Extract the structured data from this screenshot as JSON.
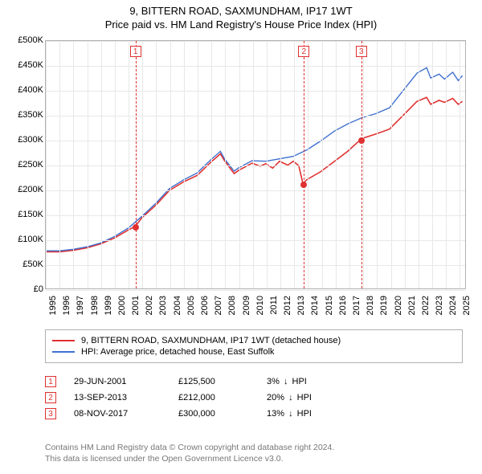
{
  "title_line1": "9, BITTERN ROAD, SAXMUNDHAM, IP17 1WT",
  "title_line2": "Price paid vs. HM Land Registry's House Price Index (HPI)",
  "chart": {
    "type": "line",
    "background_color": "#ffffff",
    "grid_color": "#e8e8e8",
    "border_color": "#b0b0b0",
    "x": {
      "min": 1995,
      "max": 2025.5,
      "ticks": [
        1995,
        1996,
        1997,
        1998,
        1999,
        2000,
        2001,
        2002,
        2003,
        2004,
        2005,
        2006,
        2007,
        2008,
        2009,
        2010,
        2011,
        2012,
        2013,
        2014,
        2015,
        2016,
        2017,
        2018,
        2019,
        2020,
        2021,
        2022,
        2023,
        2024,
        2025
      ]
    },
    "y": {
      "min": 0,
      "max": 500000,
      "step": 50000,
      "labels": [
        "£0",
        "£50K",
        "£100K",
        "£150K",
        "£200K",
        "£250K",
        "£300K",
        "£350K",
        "£400K",
        "£450K",
        "£500K"
      ]
    },
    "series": [
      {
        "name": "9, BITTERN ROAD, SAXMUNDHAM, IP17 1WT (detached house)",
        "color": "#e03030",
        "width": 1.6,
        "points": [
          [
            1995,
            74000
          ],
          [
            1996,
            74000
          ],
          [
            1997,
            77000
          ],
          [
            1998,
            82000
          ],
          [
            1999,
            90000
          ],
          [
            2000,
            102000
          ],
          [
            2001,
            118000
          ],
          [
            2001.5,
            125500
          ],
          [
            2002,
            143000
          ],
          [
            2003,
            168000
          ],
          [
            2004,
            198000
          ],
          [
            2005,
            215000
          ],
          [
            2006,
            228000
          ],
          [
            2007,
            255000
          ],
          [
            2007.7,
            272000
          ],
          [
            2008,
            258000
          ],
          [
            2008.7,
            232000
          ],
          [
            2009,
            238000
          ],
          [
            2010,
            253000
          ],
          [
            2010.6,
            247000
          ],
          [
            2011,
            252000
          ],
          [
            2011.5,
            243000
          ],
          [
            2012,
            257000
          ],
          [
            2012.6,
            249000
          ],
          [
            2013,
            257000
          ],
          [
            2013.4,
            248000
          ],
          [
            2013.7,
            212000
          ],
          [
            2014,
            220000
          ],
          [
            2015,
            236000
          ],
          [
            2016,
            257000
          ],
          [
            2017,
            278000
          ],
          [
            2017.86,
            300000
          ],
          [
            2018,
            303000
          ],
          [
            2019,
            312000
          ],
          [
            2020,
            322000
          ],
          [
            2021,
            350000
          ],
          [
            2022,
            378000
          ],
          [
            2022.7,
            386000
          ],
          [
            2023,
            372000
          ],
          [
            2023.6,
            380000
          ],
          [
            2024,
            376000
          ],
          [
            2024.6,
            384000
          ],
          [
            2025,
            372000
          ],
          [
            2025.3,
            378000
          ]
        ]
      },
      {
        "name": "HPI: Average price, detached house, East Suffolk",
        "color": "#4070d0",
        "width": 1.4,
        "points": [
          [
            1995,
            76000
          ],
          [
            1996,
            76000
          ],
          [
            1997,
            79000
          ],
          [
            1998,
            84000
          ],
          [
            1999,
            92000
          ],
          [
            2000,
            105000
          ],
          [
            2001,
            122000
          ],
          [
            2002,
            146000
          ],
          [
            2003,
            172000
          ],
          [
            2004,
            202000
          ],
          [
            2005,
            219000
          ],
          [
            2006,
            233000
          ],
          [
            2007,
            260000
          ],
          [
            2007.7,
            277000
          ],
          [
            2008,
            262000
          ],
          [
            2008.7,
            237000
          ],
          [
            2009,
            243000
          ],
          [
            2010,
            258000
          ],
          [
            2011,
            257000
          ],
          [
            2012,
            262000
          ],
          [
            2013,
            267000
          ],
          [
            2014,
            280000
          ],
          [
            2015,
            298000
          ],
          [
            2016,
            318000
          ],
          [
            2017,
            333000
          ],
          [
            2018,
            345000
          ],
          [
            2019,
            353000
          ],
          [
            2020,
            365000
          ],
          [
            2021,
            400000
          ],
          [
            2022,
            435000
          ],
          [
            2022.7,
            446000
          ],
          [
            2023,
            425000
          ],
          [
            2023.6,
            433000
          ],
          [
            2024,
            423000
          ],
          [
            2024.6,
            437000
          ],
          [
            2025,
            420000
          ],
          [
            2025.3,
            430000
          ]
        ]
      }
    ],
    "markers": [
      {
        "n": "1",
        "year": 2001.5,
        "price": 125500
      },
      {
        "n": "2",
        "year": 2013.7,
        "price": 212000
      },
      {
        "n": "3",
        "year": 2017.86,
        "price": 300000
      }
    ]
  },
  "legend": {
    "items": [
      {
        "color": "#e03030",
        "label": "9, BITTERN ROAD, SAXMUNDHAM, IP17 1WT (detached house)"
      },
      {
        "color": "#4070d0",
        "label": "HPI: Average price, detached house, East Suffolk"
      }
    ]
  },
  "events": [
    {
      "n": "1",
      "date": "29-JUN-2001",
      "price": "£125,500",
      "delta_pct": "3%",
      "delta_dir": "↓",
      "delta_label": "HPI"
    },
    {
      "n": "2",
      "date": "13-SEP-2013",
      "price": "£212,000",
      "delta_pct": "20%",
      "delta_dir": "↓",
      "delta_label": "HPI"
    },
    {
      "n": "3",
      "date": "08-NOV-2017",
      "price": "£300,000",
      "delta_pct": "13%",
      "delta_dir": "↓",
      "delta_label": "HPI"
    }
  ],
  "footer_line1": "Contains HM Land Registry data © Crown copyright and database right 2024.",
  "footer_line2": "This data is licensed under the Open Government Licence v3.0.",
  "colors": {
    "text": "#000000",
    "muted": "#777777",
    "red": "#e03030",
    "blue": "#4070d0"
  }
}
